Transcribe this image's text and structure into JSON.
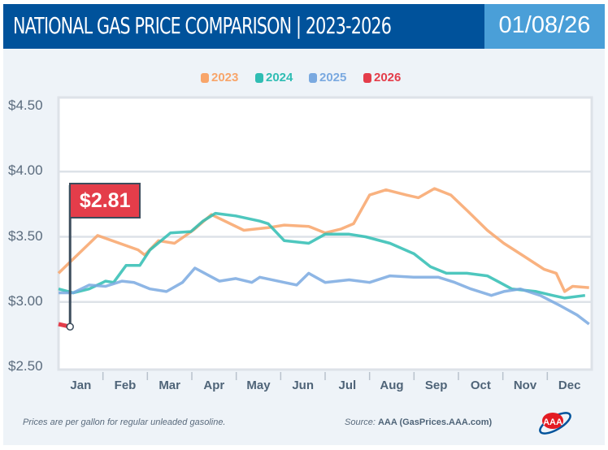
{
  "header": {
    "title": "NATIONAL GAS PRICE COMPARISON | 2023-2026",
    "date": "01/08/26"
  },
  "footer": {
    "note": "Prices are per gallon for regular unleaded gasoline.",
    "source_prefix": "Source:",
    "source": "AAA (GasPrices.AAA.com)",
    "logo": "AAA"
  },
  "chart_data": {
    "type": "line",
    "x_unit": "month (0 = Jan 1, 12 = Dec 31)",
    "xticks": [
      "Jan",
      "Feb",
      "Mar",
      "Apr",
      "May",
      "Jun",
      "Jul",
      "Aug",
      "Sep",
      "Oct",
      "Nov",
      "Dec"
    ],
    "yticks": [
      "$4.50",
      "$4.00",
      "$3.50",
      "$3.00",
      "$2.50"
    ],
    "ylim": [
      2.5,
      4.5
    ],
    "grid": true,
    "legend": "top-center",
    "annotation": "$2.81",
    "series": [
      {
        "name": "2023",
        "color": "#f8a56a",
        "x": [
          0,
          0.24,
          0.88,
          1.79,
          1.94,
          2.25,
          2.61,
          3.03,
          3.44,
          4.17,
          4.72,
          5.08,
          5.63,
          6.0,
          6.36,
          6.64,
          7.0,
          7.37,
          7.83,
          8.1,
          8.46,
          8.83,
          9.2,
          9.65,
          10.02,
          10.48,
          10.93,
          11.2,
          11.39,
          11.57,
          11.94
        ],
        "y": [
          3.22,
          3.3,
          3.51,
          3.4,
          3.36,
          3.47,
          3.45,
          3.55,
          3.67,
          3.55,
          3.57,
          3.59,
          3.58,
          3.53,
          3.56,
          3.6,
          3.82,
          3.86,
          3.82,
          3.8,
          3.87,
          3.82,
          3.7,
          3.55,
          3.45,
          3.35,
          3.25,
          3.22,
          3.08,
          3.12,
          3.11
        ]
      },
      {
        "name": "2024",
        "color": "#2fbdb3",
        "x": [
          0,
          0.33,
          0.69,
          1.06,
          1.24,
          1.52,
          1.83,
          2.06,
          2.52,
          2.98,
          3.25,
          3.53,
          3.99,
          4.53,
          4.72,
          5.08,
          5.63,
          6.0,
          6.54,
          6.91,
          7.46,
          8.0,
          8.37,
          8.73,
          9.19,
          9.65,
          9.93,
          10.2,
          10.75,
          11.12,
          11.39,
          11.85
        ],
        "y": [
          3.1,
          3.07,
          3.1,
          3.16,
          3.15,
          3.28,
          3.28,
          3.4,
          3.53,
          3.54,
          3.62,
          3.68,
          3.66,
          3.62,
          3.6,
          3.47,
          3.45,
          3.52,
          3.52,
          3.5,
          3.45,
          3.37,
          3.27,
          3.22,
          3.22,
          3.2,
          3.15,
          3.1,
          3.08,
          3.05,
          3.03,
          3.05
        ]
      },
      {
        "name": "2025",
        "color": "#7aa9e0",
        "x": [
          0,
          0.33,
          0.69,
          1.06,
          1.43,
          1.7,
          2.06,
          2.43,
          2.79,
          3.07,
          3.62,
          3.99,
          4.35,
          4.53,
          5.08,
          5.36,
          5.63,
          6.0,
          6.54,
          7.0,
          7.46,
          8.0,
          8.55,
          8.92,
          9.28,
          9.74,
          10.02,
          10.39,
          10.84,
          11.3,
          11.67,
          11.94
        ],
        "y": [
          3.07,
          3.07,
          3.13,
          3.12,
          3.16,
          3.15,
          3.1,
          3.08,
          3.15,
          3.26,
          3.16,
          3.18,
          3.15,
          3.19,
          3.15,
          3.13,
          3.22,
          3.15,
          3.17,
          3.15,
          3.2,
          3.19,
          3.19,
          3.15,
          3.1,
          3.05,
          3.08,
          3.1,
          3.05,
          2.97,
          2.9,
          2.83
        ]
      },
      {
        "name": "2026",
        "color": "#e43d4a",
        "x": [
          0,
          0.26
        ],
        "y": [
          2.83,
          2.81
        ]
      }
    ]
  }
}
